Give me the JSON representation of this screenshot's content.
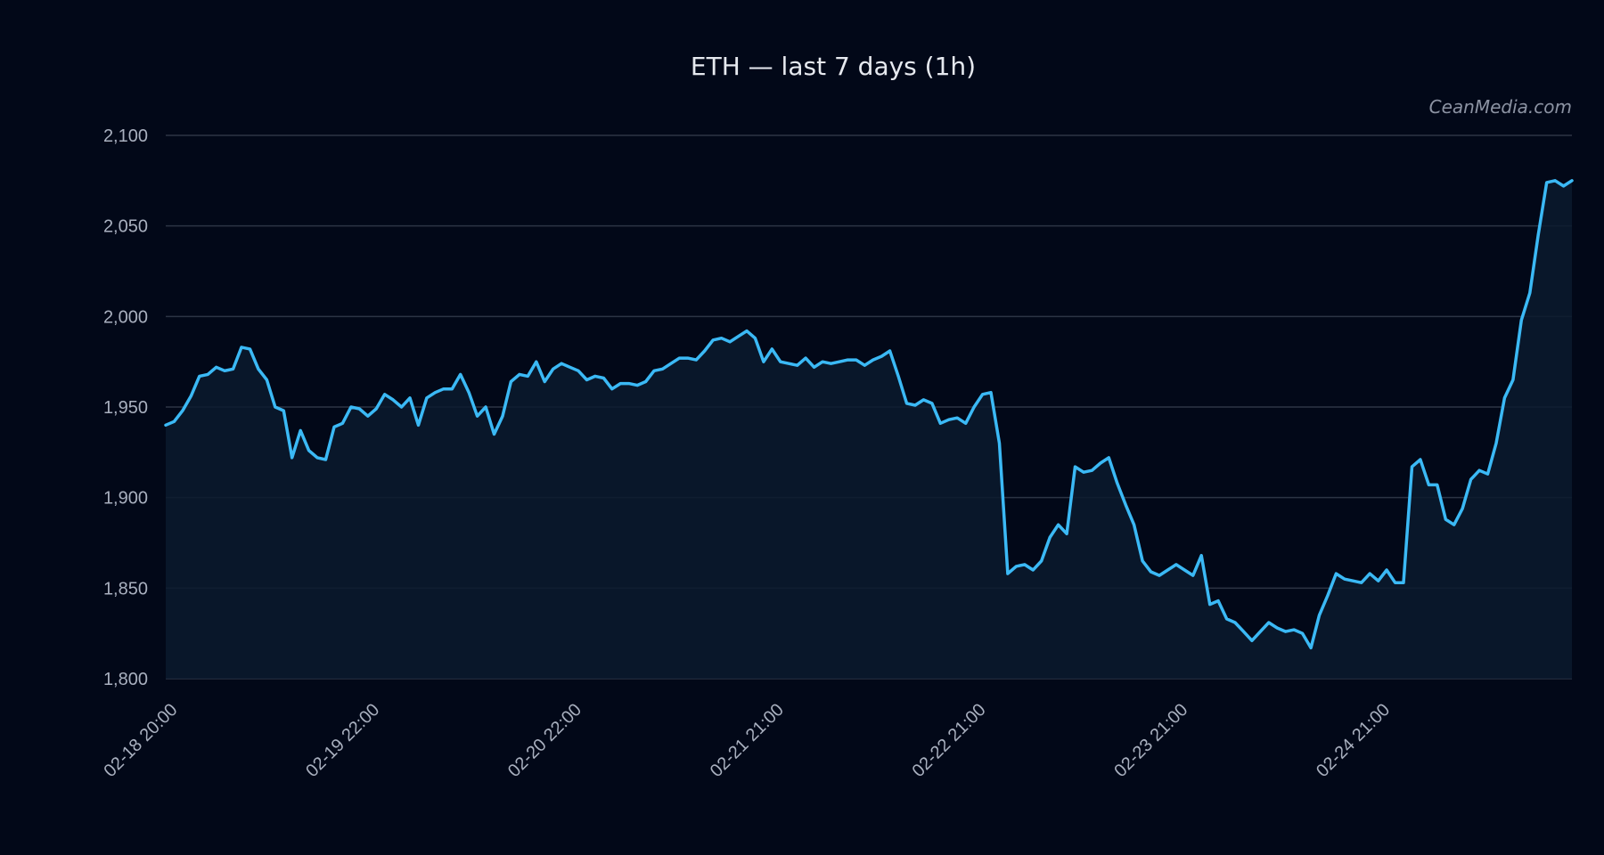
{
  "chart_data": {
    "type": "area",
    "title": "ETH — last 7 days (1h)",
    "watermark": "CeanMedia.com",
    "xlabel": "",
    "ylabel": "",
    "ylim": [
      1800,
      2100
    ],
    "yticks": [
      1800,
      1850,
      1900,
      1950,
      2000,
      2050,
      2100
    ],
    "ytick_labels": [
      "1,800",
      "1,850",
      "1,900",
      "1,950",
      "2,000",
      "2,050",
      "2,100"
    ],
    "xlim": [
      0,
      167
    ],
    "xticks": [
      0,
      24,
      48,
      72,
      96,
      120,
      144
    ],
    "xtick_labels": [
      "02-18 20:00",
      "02-19 22:00",
      "02-20 22:00",
      "02-21 21:00",
      "02-22 21:00",
      "02-23 21:00",
      "02-24 21:00"
    ],
    "grid": true,
    "colors": {
      "line": "#3bb9f5",
      "area": "#0a1a2e",
      "background": "#020818",
      "grid": "#2c3444"
    },
    "series": [
      {
        "values": [
          1940,
          1942,
          1948,
          1956,
          1967,
          1968,
          1972,
          1970,
          1971,
          1983,
          1982,
          1971,
          1965,
          1950,
          1948,
          1922,
          1937,
          1926,
          1922,
          1921,
          1939,
          1941,
          1950,
          1949,
          1945,
          1949,
          1957,
          1954,
          1950,
          1955,
          1940,
          1955,
          1958,
          1960,
          1960,
          1968,
          1958,
          1945,
          1950,
          1935,
          1945,
          1964,
          1968,
          1967,
          1975,
          1964,
          1971,
          1974,
          1972,
          1970,
          1965,
          1967,
          1966,
          1960,
          1963,
          1963,
          1962,
          1964,
          1970,
          1971,
          1974,
          1977,
          1977,
          1976,
          1981,
          1987,
          1988,
          1986,
          1989,
          1992,
          1988,
          1975,
          1982,
          1975,
          1974,
          1973,
          1977,
          1972,
          1975,
          1974,
          1975,
          1976,
          1976,
          1973,
          1976,
          1978,
          1981,
          1967,
          1952,
          1951,
          1954,
          1952,
          1941,
          1943,
          1944,
          1941,
          1950,
          1957,
          1958,
          1930,
          1858,
          1862,
          1863,
          1860,
          1865,
          1878,
          1885,
          1880,
          1917,
          1914,
          1915,
          1919,
          1922,
          1908,
          1896,
          1885,
          1865,
          1859,
          1857,
          1860,
          1863,
          1860,
          1857,
          1868,
          1841,
          1843,
          1833,
          1831,
          1826,
          1821,
          1826,
          1831,
          1828,
          1826,
          1827,
          1825,
          1817,
          1835,
          1846,
          1858,
          1855,
          1854,
          1853,
          1858,
          1854,
          1860,
          1853,
          1853,
          1917,
          1921,
          1907,
          1907,
          1888,
          1885,
          1894,
          1910,
          1915,
          1913,
          1930,
          1955,
          1965,
          1998,
          2013,
          2045,
          2074,
          2075,
          2072,
          2075
        ]
      }
    ]
  }
}
